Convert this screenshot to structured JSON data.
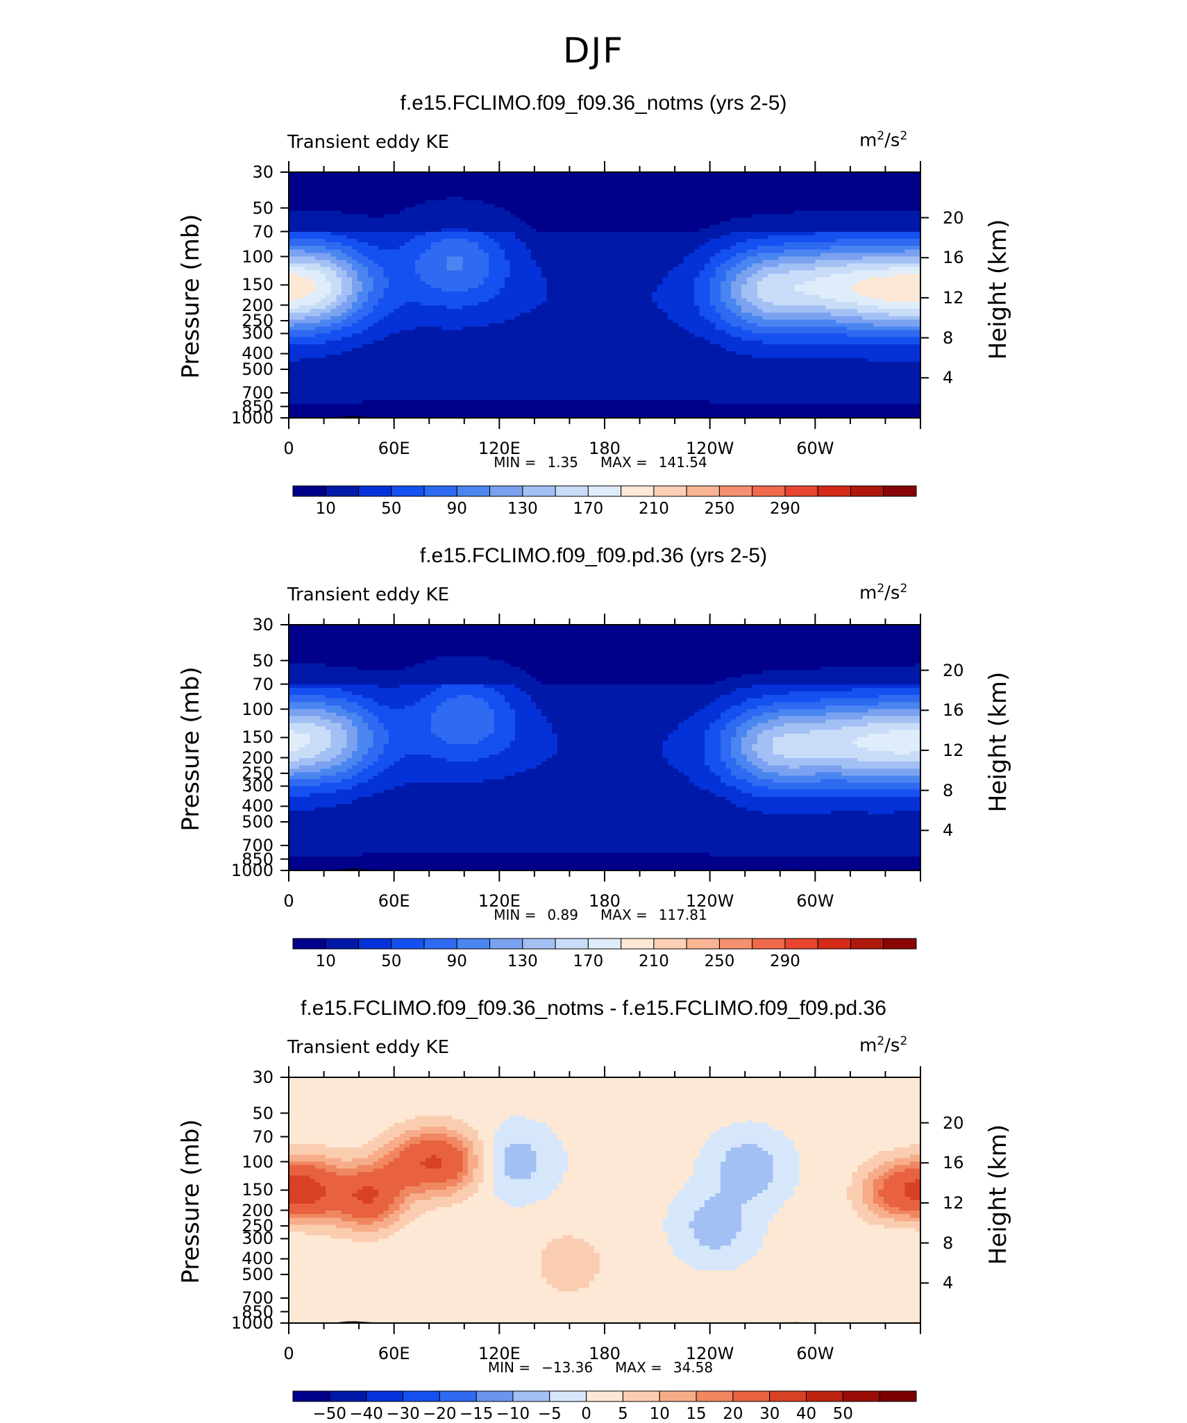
{
  "figure": {
    "title": "DJF"
  },
  "colors": {
    "blues": [
      "#00008b",
      "#0019a8",
      "#0532d8",
      "#1550f0",
      "#2e6af2",
      "#4a85f0",
      "#7aa2f0",
      "#a3c0f5",
      "#c8dcf8",
      "#dfedfb"
    ],
    "reds": [
      "#fde8d5",
      "#fcd0b5",
      "#f9b493",
      "#f59070",
      "#f06a4c",
      "#e8452e",
      "#d42a18",
      "#b0180c",
      "#8a0606"
    ],
    "diff_blues": [
      "#00008b",
      "#0019a8",
      "#0532d8",
      "#1550f0",
      "#2e6af2",
      "#6a95ee",
      "#a3c0f5",
      "#d6e7fb"
    ],
    "diff_reds": [
      "#fde8d5",
      "#fbcdb0",
      "#f7ad8a",
      "#f08761",
      "#e8623f",
      "#d94124",
      "#bd2410",
      "#9a0d06",
      "#7a0000"
    ]
  },
  "chart_data": [
    {
      "type": "heatmap",
      "title": "f.e15.FCLIMO.f09_f09.36_notms (yrs 2-5)",
      "variable_label": "Transient eddy KE",
      "units_base": "m",
      "units_exp1": "2",
      "units_sep": "/s",
      "units_exp2": "2",
      "ylabel_left": "Pressure (mb)",
      "ylabel_right": "Height (km)",
      "pressure_ticks": [
        "30",
        "50",
        "70",
        "100",
        "150",
        "200",
        "250",
        "300",
        "400",
        "500",
        "700",
        "850",
        "1000"
      ],
      "pressure_values": [
        30,
        50,
        70,
        100,
        150,
        200,
        250,
        300,
        400,
        500,
        700,
        850,
        1000
      ],
      "height_ticks": [
        "20",
        "16",
        "12",
        "8",
        "4"
      ],
      "height_values": [
        20,
        16,
        12,
        8,
        4
      ],
      "lon_ticks": [
        "0",
        "60E",
        "120E",
        "180",
        "120W",
        "60W"
      ],
      "lon_values": [
        0,
        60,
        120,
        180,
        240,
        300
      ],
      "xlim": [
        0,
        360
      ],
      "ylim": [
        1000,
        30
      ],
      "min_label": "MIN =",
      "min_value": "1.35",
      "max_label": "MAX =",
      "max_value": "141.54",
      "colorbar_labels": [
        "10",
        "50",
        "90",
        "130",
        "170",
        "210",
        "250",
        "290"
      ],
      "jets": [
        {
          "lon": 20,
          "p": 150,
          "amp": 120
        },
        {
          "lon": 95,
          "p": 105,
          "amp": 70
        },
        {
          "lon": 270,
          "p": 160,
          "amp": 110
        },
        {
          "lon": 310,
          "p": 150,
          "amp": 100
        },
        {
          "lon": 345,
          "p": 160,
          "amp": 115
        }
      ]
    },
    {
      "type": "heatmap",
      "title": "f.e15.FCLIMO.f09_f09.pd.36 (yrs 2-5)",
      "variable_label": "Transient eddy KE",
      "units_base": "m",
      "units_exp1": "2",
      "units_sep": "/s",
      "units_exp2": "2",
      "ylabel_left": "Pressure (mb)",
      "ylabel_right": "Height (km)",
      "pressure_ticks": [
        "30",
        "50",
        "70",
        "100",
        "150",
        "200",
        "250",
        "300",
        "400",
        "500",
        "700",
        "850",
        "1000"
      ],
      "pressure_values": [
        30,
        50,
        70,
        100,
        150,
        200,
        250,
        300,
        400,
        500,
        700,
        850,
        1000
      ],
      "height_ticks": [
        "20",
        "16",
        "12",
        "8",
        "4"
      ],
      "height_values": [
        20,
        16,
        12,
        8,
        4
      ],
      "lon_ticks": [
        "0",
        "60E",
        "120E",
        "180",
        "120W",
        "60W"
      ],
      "lon_values": [
        0,
        60,
        120,
        180,
        240,
        300
      ],
      "xlim": [
        0,
        360
      ],
      "ylim": [
        1000,
        30
      ],
      "min_label": "MIN =",
      "min_value": "0.89",
      "max_label": "MAX =",
      "max_value": "117.81",
      "colorbar_labels": [
        "10",
        "50",
        "90",
        "130",
        "170",
        "210",
        "250",
        "290"
      ],
      "jets": [
        {
          "lon": 25,
          "p": 150,
          "amp": 95
        },
        {
          "lon": 100,
          "p": 110,
          "amp": 65
        },
        {
          "lon": 275,
          "p": 170,
          "amp": 105
        },
        {
          "lon": 315,
          "p": 160,
          "amp": 90
        },
        {
          "lon": 350,
          "p": 160,
          "amp": 100
        }
      ]
    },
    {
      "type": "heatmap",
      "title": "f.e15.FCLIMO.f09_f09.36_notms - f.e15.FCLIMO.f09_f09.pd.36",
      "variable_label": "Transient eddy KE",
      "units_base": "m",
      "units_exp1": "2",
      "units_sep": "/s",
      "units_exp2": "2",
      "ylabel_left": "Pressure (mb)",
      "ylabel_right": "Height (km)",
      "pressure_ticks": [
        "30",
        "50",
        "70",
        "100",
        "150",
        "200",
        "250",
        "300",
        "400",
        "500",
        "700",
        "850",
        "1000"
      ],
      "pressure_values": [
        30,
        50,
        70,
        100,
        150,
        200,
        250,
        300,
        400,
        500,
        700,
        850,
        1000
      ],
      "height_ticks": [
        "20",
        "16",
        "12",
        "8",
        "4"
      ],
      "height_values": [
        20,
        16,
        12,
        8,
        4
      ],
      "lon_ticks": [
        "0",
        "60E",
        "120E",
        "180",
        "120W",
        "60W"
      ],
      "lon_values": [
        0,
        60,
        120,
        180,
        240,
        300
      ],
      "xlim": [
        0,
        360
      ],
      "ylim": [
        1000,
        30
      ],
      "min_label": "MIN =",
      "min_value": "−13.36",
      "max_label": "MAX =",
      "max_value": "34.58",
      "colorbar_labels": [
        "−50",
        "−40",
        "−30",
        "−20",
        "−15",
        "−10",
        "−5",
        "0",
        "5",
        "10",
        "15",
        "20",
        "30",
        "40",
        "50"
      ],
      "anomalies": [
        {
          "lon": 10,
          "p": 150,
          "amp": 30
        },
        {
          "lon": 45,
          "p": 165,
          "amp": 28
        },
        {
          "lon": 90,
          "p": 100,
          "amp": 22
        },
        {
          "lon": 70,
          "p": 100,
          "amp": 16
        },
        {
          "lon": 345,
          "p": 160,
          "amp": 22
        },
        {
          "lon": 160,
          "p": 430,
          "amp": 8
        },
        {
          "lon": 130,
          "p": 100,
          "amp": -9
        },
        {
          "lon": 262,
          "p": 110,
          "amp": -11
        },
        {
          "lon": 243,
          "p": 250,
          "amp": -10
        },
        {
          "lon": 350,
          "p": 230,
          "amp": -6
        }
      ]
    }
  ]
}
